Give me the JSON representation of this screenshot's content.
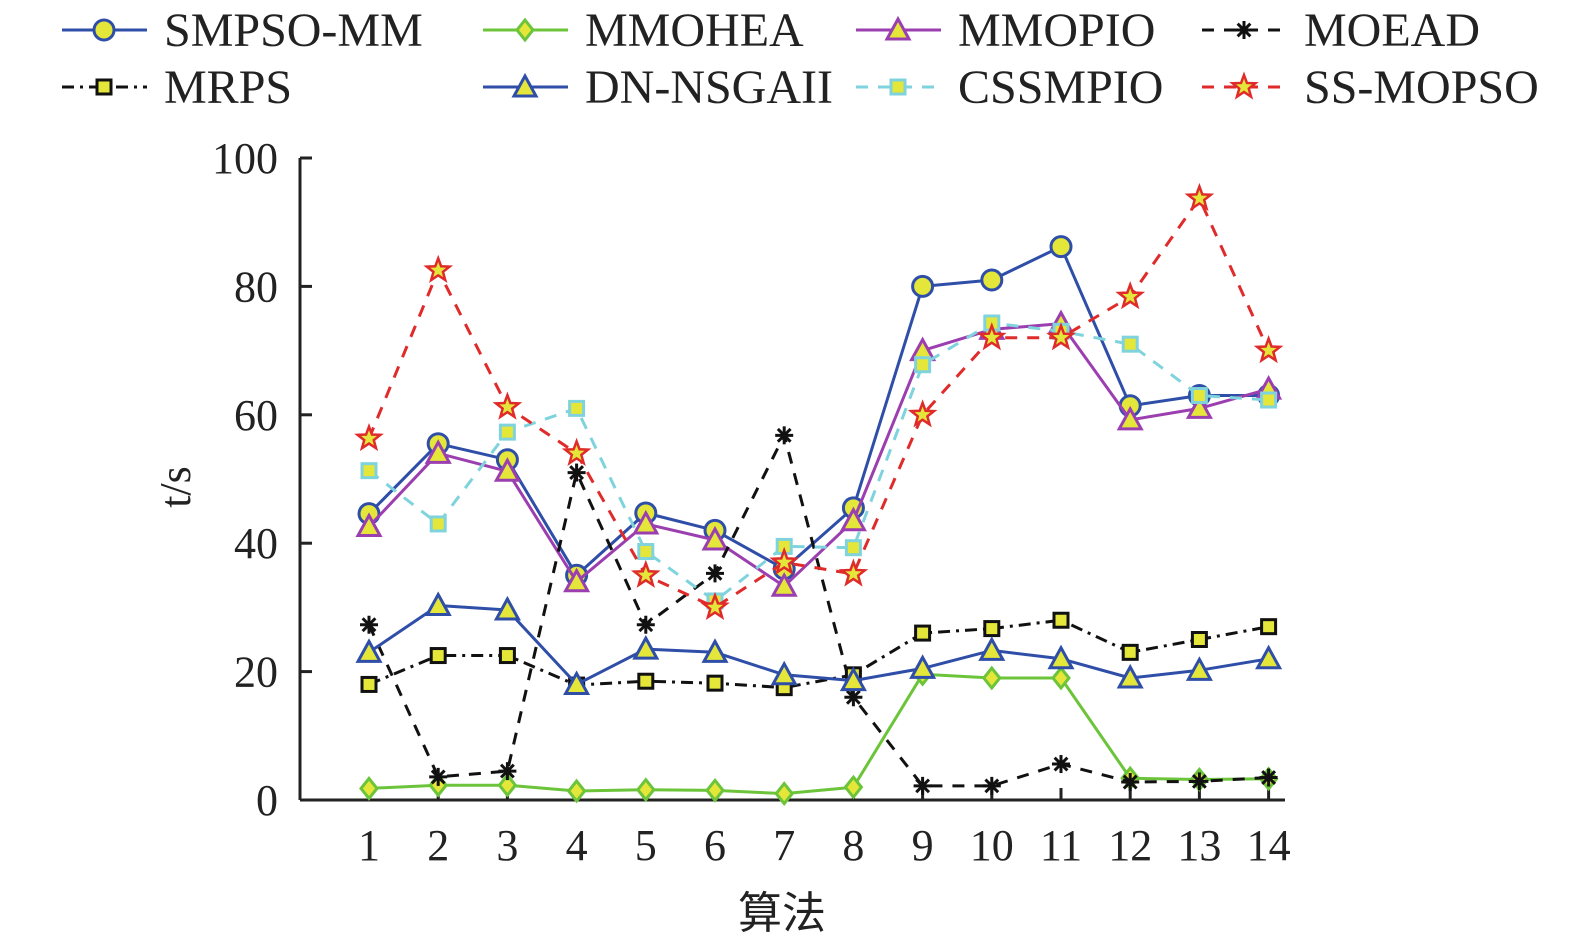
{
  "chart_data": {
    "type": "line",
    "title": "",
    "xlabel": "算法",
    "ylabel": "t/s",
    "x": [
      1,
      2,
      3,
      4,
      5,
      6,
      7,
      8,
      9,
      10,
      11,
      12,
      13,
      14
    ],
    "xticks": [
      "1",
      "2",
      "3",
      "4",
      "5",
      "6",
      "7",
      "8",
      "9",
      "10",
      "11",
      "12",
      "13",
      "14"
    ],
    "ylim": [
      0,
      100
    ],
    "yticks": [
      "0",
      "20",
      "40",
      "60",
      "80",
      "100"
    ],
    "legend_position": "top",
    "grid": false,
    "series": [
      {
        "name": "SMPSO-MM",
        "color": "#2f4ea8",
        "marker": "circle",
        "marker_fill": "#e4e63a",
        "dash": "solid",
        "values": [
          44.6,
          55.5,
          53.0,
          35.0,
          44.7,
          42.0,
          36.0,
          45.5,
          80.0,
          81.0,
          86.2,
          61.4,
          63.0,
          63.0
        ]
      },
      {
        "name": "MMOHEA",
        "color": "#6cc43a",
        "marker": "diamond",
        "marker_fill": "#e4e63a",
        "dash": "solid",
        "values": [
          1.8,
          2.3,
          2.3,
          1.4,
          1.6,
          1.5,
          1.0,
          2.0,
          19.6,
          19.0,
          19.0,
          3.4,
          3.2,
          3.3
        ]
      },
      {
        "name": "MMOPIO",
        "color": "#9b3fb0",
        "marker": "triangle",
        "marker_fill": "#e4e63a",
        "dash": "solid",
        "values": [
          42.6,
          54.0,
          51.2,
          34.0,
          43.0,
          40.5,
          33.3,
          43.5,
          70.0,
          73.3,
          74.2,
          59.2,
          61.0,
          64.0
        ]
      },
      {
        "name": "MOEAD",
        "color": "#111111",
        "marker": "asterisk",
        "marker_fill": "#111111",
        "dash": "dashed",
        "values": [
          27.3,
          3.6,
          4.5,
          51.0,
          27.3,
          35.3,
          56.8,
          16.0,
          2.2,
          2.2,
          5.6,
          2.8,
          2.9,
          3.5
        ]
      },
      {
        "name": "MRPS",
        "color": "#111111",
        "marker": "square",
        "marker_fill": "#e4e63a",
        "dash": "dashdot",
        "values": [
          18.0,
          22.5,
          22.5,
          17.9,
          18.5,
          18.2,
          17.5,
          19.5,
          26.0,
          26.7,
          28.0,
          23.0,
          25.0,
          27.0
        ]
      },
      {
        "name": "DN-NSGAII",
        "color": "#2f4ea8",
        "marker": "triangle",
        "marker_fill": "#e4e63a",
        "dash": "solid",
        "values": [
          23.0,
          30.3,
          29.6,
          18.0,
          23.5,
          23.0,
          19.5,
          18.6,
          20.5,
          23.3,
          22.0,
          19.0,
          20.2,
          22.0
        ]
      },
      {
        "name": "CSSMPIO",
        "color": "#7fd3dd",
        "marker": "square",
        "marker_fill": "#e4e63a",
        "dash": "dashed",
        "values": [
          51.3,
          43.0,
          57.3,
          61.0,
          38.7,
          31.0,
          39.5,
          39.3,
          67.8,
          74.3,
          73.0,
          71.0,
          63.0,
          62.3
        ]
      },
      {
        "name": "SS-MOPSO",
        "color": "#e02b2b",
        "marker": "star",
        "marker_fill": "#e4e63a",
        "dash": "dashed",
        "values": [
          56.3,
          82.5,
          61.2,
          54.0,
          35.0,
          30.0,
          37.0,
          35.2,
          60.0,
          72.0,
          72.0,
          78.4,
          93.7,
          70.0
        ]
      }
    ]
  }
}
